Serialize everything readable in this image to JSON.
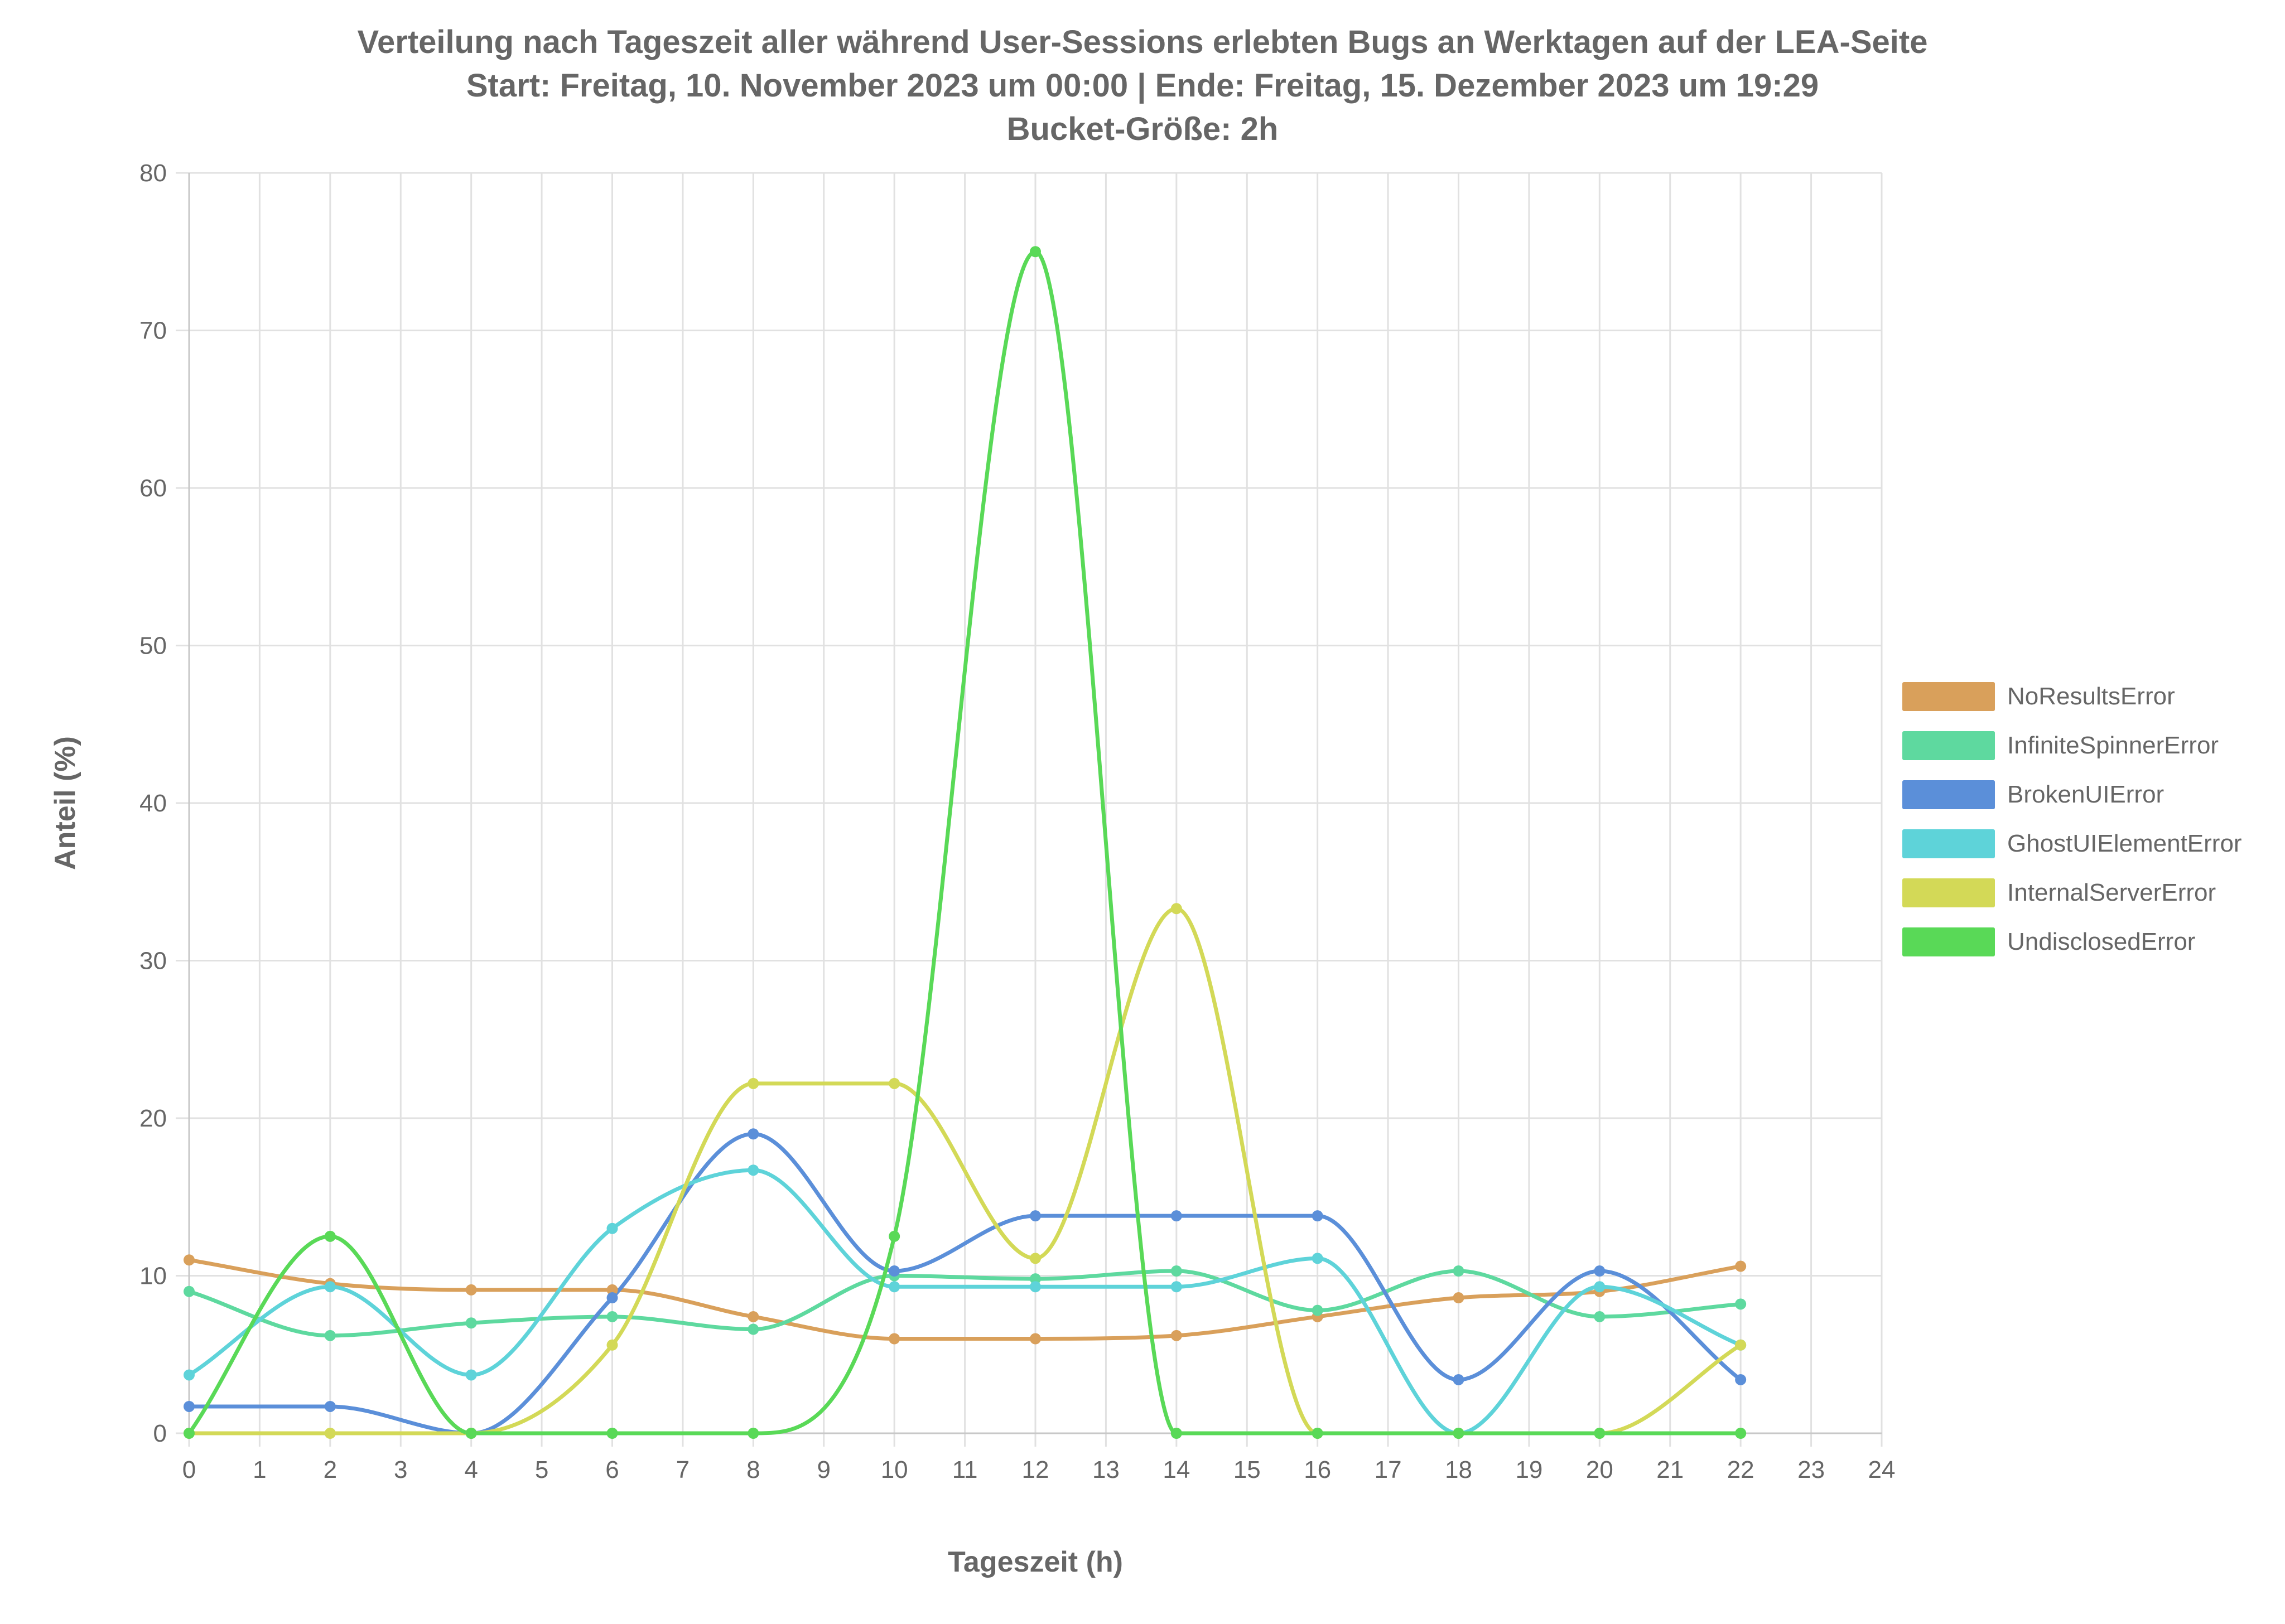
{
  "title_lines": [
    "Verteilung nach Tageszeit aller während User-Sessions erlebten Bugs an Werktagen auf der LEA-Seite",
    "Start: Freitag, 10. November 2023 um 00:00 | Ende: Freitag, 15. Dezember 2023 um 19:29",
    "Bucket-Größe: 2h"
  ],
  "chart_data": {
    "type": "line",
    "title": "Verteilung nach Tageszeit aller während User-Sessions erlebten Bugs an Werktagen auf der LEA-Seite",
    "subtitle": [
      "Start: Freitag, 10. November 2023 um 00:00 | Ende: Freitag, 15. Dezember 2023 um 19:29",
      "Bucket-Größe: 2h"
    ],
    "xlabel": "Tageszeit (h)",
    "ylabel": "Anteil (%)",
    "xlim": [
      0,
      24
    ],
    "ylim": [
      0,
      80
    ],
    "x_ticks": [
      "0",
      "1",
      "2",
      "3",
      "4",
      "5",
      "6",
      "7",
      "8",
      "9",
      "10",
      "11",
      "12",
      "13",
      "14",
      "15",
      "16",
      "17",
      "18",
      "19",
      "20",
      "21",
      "22",
      "23",
      "24"
    ],
    "y_ticks": [
      "0",
      "10",
      "20",
      "30",
      "40",
      "50",
      "60",
      "70",
      "80"
    ],
    "grid": true,
    "legend_position": "right",
    "smooth": true,
    "x": [
      0,
      2,
      4,
      6,
      8,
      10,
      12,
      14,
      16,
      18,
      20,
      22
    ],
    "series": [
      {
        "name": "NoResultsError",
        "color": "#d9a05b",
        "values": [
          11.0,
          9.5,
          9.1,
          9.1,
          7.4,
          6.0,
          6.0,
          6.2,
          7.4,
          8.6,
          9.0,
          10.6
        ]
      },
      {
        "name": "InfiniteSpinnerError",
        "color": "#5ed99f",
        "values": [
          9.0,
          6.2,
          7.0,
          7.4,
          6.6,
          10.0,
          9.8,
          10.3,
          7.8,
          10.3,
          7.4,
          8.2
        ]
      },
      {
        "name": "BrokenUIError",
        "color": "#5b8fd9",
        "values": [
          1.7,
          1.7,
          0.0,
          8.6,
          19.0,
          10.3,
          13.8,
          13.8,
          13.8,
          3.4,
          10.3,
          3.4
        ]
      },
      {
        "name": "GhostUIElementError",
        "color": "#5ed3d9",
        "values": [
          3.7,
          9.3,
          3.7,
          13.0,
          16.7,
          9.3,
          9.3,
          9.3,
          11.1,
          0.0,
          9.3,
          5.6
        ]
      },
      {
        "name": "InternalServerError",
        "color": "#d3d957",
        "values": [
          0.0,
          0.0,
          0.0,
          5.6,
          22.2,
          22.2,
          11.1,
          33.3,
          0.0,
          0.0,
          0.0,
          5.6
        ]
      },
      {
        "name": "UndisclosedError",
        "color": "#59d957",
        "values": [
          0.0,
          12.5,
          0.0,
          0.0,
          0.0,
          12.5,
          75.0,
          0.0,
          0.0,
          0.0,
          0.0,
          0.0
        ]
      }
    ]
  }
}
